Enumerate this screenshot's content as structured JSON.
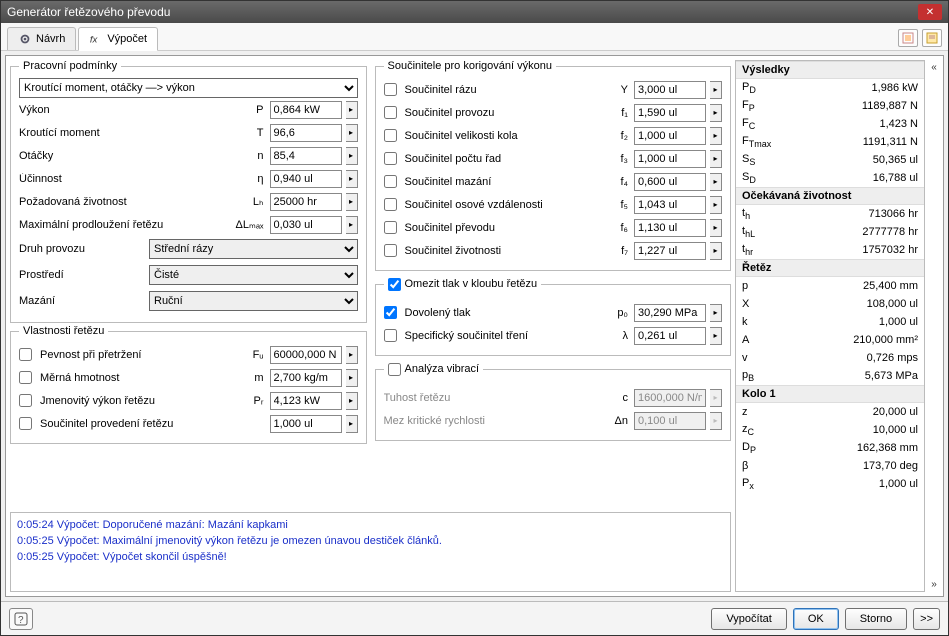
{
  "window": {
    "title": "Generátor řetězového převodu"
  },
  "tabs": {
    "design": "Návrh",
    "calc": "Výpočet"
  },
  "groups": {
    "working": "Pracovní podmínky",
    "chainprops": "Vlastnosti řetězu",
    "coeffs": "Součinitele pro korigování výkonu",
    "limit": "Omezit tlak v kloubu řetězu",
    "vibr": "Analýza vibrací"
  },
  "mainSelect": "Kroutící moment, otáčky —> výkon",
  "working": {
    "power": {
      "lbl": "Výkon",
      "sym": "P",
      "val": "0,864 kW"
    },
    "torque": {
      "lbl": "Kroutící moment",
      "sym": "T",
      "val": "96,6"
    },
    "speed": {
      "lbl": "Otáčky",
      "sym": "n",
      "val": "85,4"
    },
    "eff": {
      "lbl": "Účinnost",
      "sym": "η",
      "val": "0,940 ul"
    },
    "life": {
      "lbl": "Požadovaná životnost",
      "sym": "Lₕ",
      "val": "25000 hr"
    },
    "elong": {
      "lbl": "Maximální prodloužení řetězu",
      "sym": "ΔLₘₐₓ",
      "val": "0,030 ul"
    }
  },
  "selects": {
    "oper": {
      "lbl": "Druh provozu",
      "val": "Střední rázy"
    },
    "env": {
      "lbl": "Prostředí",
      "val": "Čisté"
    },
    "lube": {
      "lbl": "Mazání",
      "val": "Ruční"
    }
  },
  "chainprops": {
    "strength": {
      "lbl": "Pevnost při přetržení",
      "sym": "Fᵤ",
      "val": "60000,000 N"
    },
    "mass": {
      "lbl": "Měrná hmotnost",
      "sym": "m",
      "val": "2,700 kg/m"
    },
    "ratedp": {
      "lbl": "Jmenovitý výkon řetězu",
      "sym": "Pᵣ",
      "val": "4,123 kW"
    },
    "constr": {
      "lbl": "Součinitel provedení řetězu",
      "sym": "",
      "val": "1,000 ul"
    }
  },
  "coeffs": {
    "c1": {
      "lbl": "Součinitel rázu",
      "sym": "Y",
      "val": "3,000 ul"
    },
    "c2": {
      "lbl": "Součinitel provozu",
      "sym": "f₁",
      "val": "1,590 ul"
    },
    "c3": {
      "lbl": "Součinitel velikosti kola",
      "sym": "f₂",
      "val": "1,000 ul"
    },
    "c4": {
      "lbl": "Součinitel počtu řad",
      "sym": "f₃",
      "val": "1,000 ul"
    },
    "c5": {
      "lbl": "Součinitel mazání",
      "sym": "f₄",
      "val": "0,600 ul"
    },
    "c6": {
      "lbl": "Součinitel osové vzdálenosti",
      "sym": "f₅",
      "val": "1,043 ul"
    },
    "c7": {
      "lbl": "Součinitel převodu",
      "sym": "f₆",
      "val": "1,130 ul"
    },
    "c8": {
      "lbl": "Součinitel životnosti",
      "sym": "f₇",
      "val": "1,227 ul"
    }
  },
  "limit": {
    "allow": {
      "lbl": "Dovolený tlak",
      "sym": "p₀",
      "val": "30,290 MPa"
    },
    "fric": {
      "lbl": "Specifický součinitel tření",
      "sym": "λ",
      "val": "0,261 ul"
    }
  },
  "vibr": {
    "stiff": {
      "lbl": "Tuhost řetězu",
      "sym": "c",
      "val": "1600,000 N/m"
    },
    "crit": {
      "lbl": "Mez kritické rychlosti",
      "sym": "Δn",
      "val": "0,100 ul"
    }
  },
  "log": [
    "0:05:24 Výpočet: Doporučené mazání: Mazání kapkami",
    "0:05:25 Výpočet: Maximální jmenovitý výkon řetězu je omezen únavou destiček článků.",
    "0:05:25 Výpočet: Výpočet skončil úspěšně!"
  ],
  "results": {
    "hdr1": "Výsledky",
    "r1": [
      {
        "k": "P<D>",
        "v": "1,986 kW"
      },
      {
        "k": "F<P>",
        "v": "1189,887 N"
      },
      {
        "k": "F<C>",
        "v": "1,423 N"
      },
      {
        "k": "F<Tmax>",
        "v": "1191,311 N"
      },
      {
        "k": "S<S>",
        "v": "50,365 ul"
      },
      {
        "k": "S<D>",
        "v": "16,788 ul"
      }
    ],
    "hdr2": "Očekávaná životnost",
    "r2": [
      {
        "k": "t<h>",
        "v": "713066 hr"
      },
      {
        "k": "t<hL>",
        "v": "2777778 hr"
      },
      {
        "k": "t<hr>",
        "v": "1757032 hr"
      }
    ],
    "hdr3": "Řetěz",
    "r3": [
      {
        "k": "p",
        "v": "25,400 mm"
      },
      {
        "k": "X",
        "v": "108,000 ul"
      },
      {
        "k": "k",
        "v": "1,000 ul"
      },
      {
        "k": "A",
        "v": "210,000 mm²"
      },
      {
        "k": "v",
        "v": "0,726 mps"
      },
      {
        "k": "p<B>",
        "v": "5,673 MPa"
      }
    ],
    "hdr4": "Kolo 1",
    "r4": [
      {
        "k": "z",
        "v": "20,000 ul"
      },
      {
        "k": "z<C>",
        "v": "10,000 ul"
      },
      {
        "k": "D<P>",
        "v": "162,368 mm"
      },
      {
        "k": "β",
        "v": "173,70 deg"
      },
      {
        "k": "P<x>",
        "v": "1,000 ul"
      }
    ]
  },
  "footer": {
    "calc": "Vypočítat",
    "ok": "OK",
    "cancel": "Storno",
    "more": ">>"
  }
}
